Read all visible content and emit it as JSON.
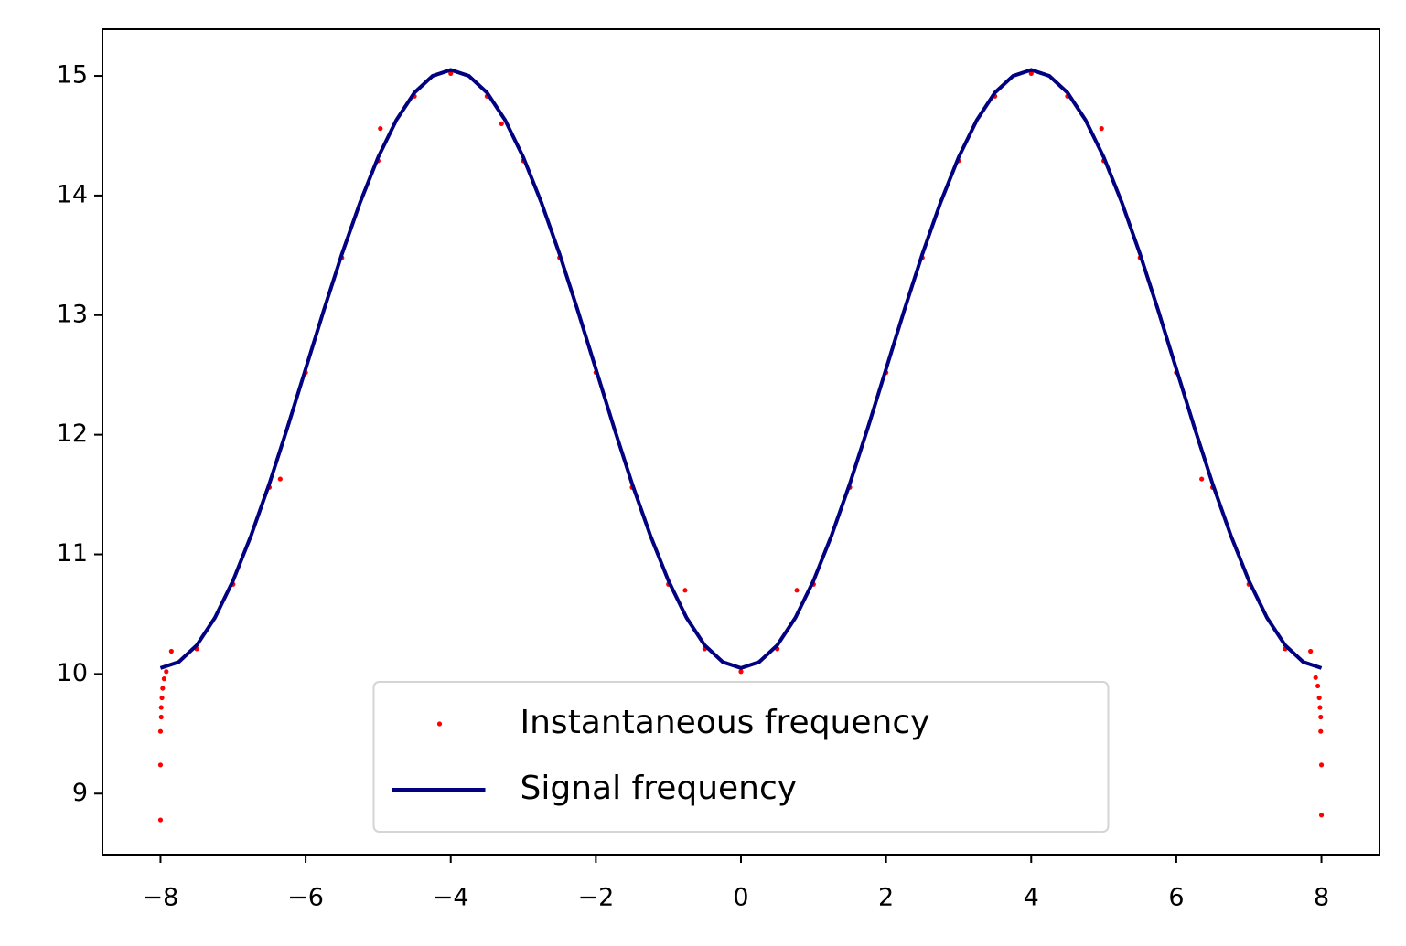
{
  "chart_data": {
    "type": "line",
    "xlim": [
      -8.8,
      8.8
    ],
    "xticks": [
      {
        "value": -8,
        "label": "−8"
      },
      {
        "value": -6,
        "label": "−6"
      },
      {
        "value": -4,
        "label": "−4"
      },
      {
        "value": -2,
        "label": "−2"
      },
      0,
      2,
      4,
      6,
      8
    ],
    "ylim": [
      8.49,
      15.39
    ],
    "yticks": [
      9,
      10,
      11,
      12,
      13,
      14,
      15
    ],
    "legend": "lower center",
    "series": [
      {
        "name": "Instantaneous frequency",
        "type": "scatter",
        "color": "#ff0000",
        "x": [
          -7.5,
          -7,
          -6.5,
          -6,
          -5.5,
          -5,
          -4.5,
          -4,
          -3.5,
          -3,
          -2.5,
          -2,
          -1.5,
          -1,
          -0.5,
          0,
          0.5,
          1,
          1.5,
          2,
          2.5,
          3,
          3.5,
          4,
          4.5,
          5,
          5.5,
          6,
          6.5,
          7,
          7.5,
          -7.85,
          -6.35,
          -4.97,
          -3.3,
          -0.77,
          0.77,
          4.97,
          6.35,
          7.85,
          -8,
          -8,
          -8,
          -7.99,
          -7.99,
          -7.98,
          -7.97,
          -7.95,
          -7.92,
          8,
          8,
          7.99,
          7.99,
          7.98,
          7.97,
          7.95,
          7.92
        ],
        "values": [
          10.21,
          10.75,
          11.56,
          12.52,
          13.48,
          14.29,
          14.83,
          15.02,
          14.83,
          14.29,
          13.48,
          12.52,
          11.56,
          10.75,
          10.21,
          10.02,
          10.21,
          10.75,
          11.56,
          12.52,
          13.48,
          14.29,
          14.83,
          15.02,
          14.83,
          14.29,
          13.48,
          12.52,
          11.56,
          10.75,
          10.21,
          10.19,
          11.63,
          14.56,
          14.6,
          10.7,
          10.7,
          14.56,
          11.63,
          10.19,
          8.78,
          9.24,
          9.52,
          9.64,
          9.72,
          9.8,
          9.88,
          9.96,
          10.02,
          8.82,
          9.24,
          9.52,
          9.64,
          9.72,
          9.8,
          9.9,
          9.97
        ]
      },
      {
        "name": "Signal frequency",
        "type": "line",
        "color": "#000080",
        "x": [
          -8,
          -7.75,
          -7.5,
          -7.25,
          -7,
          -6.75,
          -6.5,
          -6.25,
          -6,
          -5.75,
          -5.5,
          -5.25,
          -5,
          -4.75,
          -4.5,
          -4.25,
          -4,
          -3.75,
          -3.5,
          -3.25,
          -3,
          -2.75,
          -2.5,
          -2.25,
          -2,
          -1.75,
          -1.5,
          -1.25,
          -1,
          -0.75,
          -0.5,
          -0.25,
          0,
          0.25,
          0.5,
          0.75,
          1,
          1.25,
          1.5,
          1.75,
          2,
          2.25,
          2.5,
          2.75,
          3,
          3.25,
          3.5,
          3.75,
          4,
          4.25,
          4.5,
          4.75,
          5,
          5.25,
          5.5,
          5.75,
          6,
          6.25,
          6.5,
          6.75,
          7,
          7.25,
          7.5,
          7.75,
          8
        ],
        "values": [
          10.05,
          10.1,
          10.24,
          10.47,
          10.78,
          11.16,
          11.59,
          12.06,
          12.55,
          13.04,
          13.51,
          13.94,
          14.32,
          14.63,
          14.86,
          15,
          15.05,
          15,
          14.86,
          14.63,
          14.32,
          13.94,
          13.51,
          13.04,
          12.55,
          12.06,
          11.59,
          11.16,
          10.78,
          10.47,
          10.24,
          10.1,
          10.05,
          10.1,
          10.24,
          10.47,
          10.78,
          11.16,
          11.59,
          12.06,
          12.55,
          13.04,
          13.51,
          13.94,
          14.32,
          14.63,
          14.86,
          15,
          15.05,
          15,
          14.86,
          14.63,
          14.32,
          13.94,
          13.51,
          13.04,
          12.55,
          12.06,
          11.59,
          11.16,
          10.78,
          10.47,
          10.24,
          10.1,
          10.05
        ]
      }
    ]
  }
}
